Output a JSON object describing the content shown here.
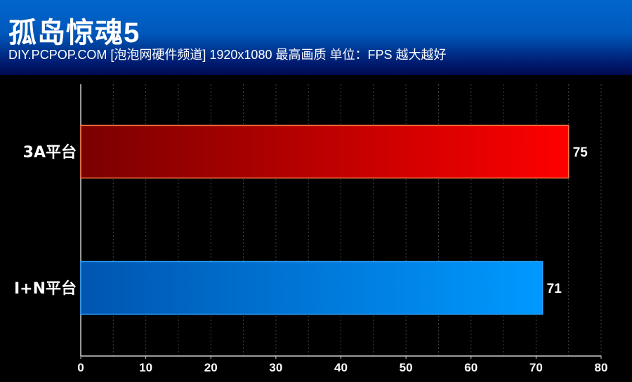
{
  "chart_data": {
    "type": "bar",
    "orientation": "horizontal",
    "title": "孤岛惊魂5",
    "subtitle": "DIY.PCPOP.COM [泡泡网硬件频道] 1920x1080 最高画质 单位：FPS  越大越好",
    "categories": [
      "3A平台",
      "I+N平台"
    ],
    "values": [
      75,
      71
    ],
    "xlim": [
      0,
      80
    ],
    "xticks": [
      "0",
      "10",
      "20",
      "30",
      "40",
      "50",
      "60",
      "70",
      "80"
    ],
    "grid": true,
    "colors": {
      "3A平台": [
        "#7a0000",
        "#ff0000"
      ],
      "I+N平台": [
        "#0055b0",
        "#0099ff"
      ]
    },
    "xlabel": "",
    "ylabel": ""
  }
}
